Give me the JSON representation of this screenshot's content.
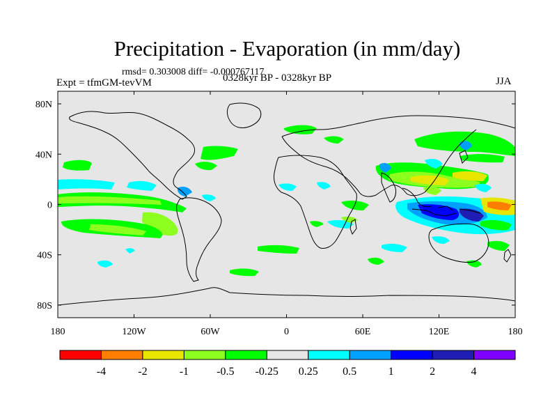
{
  "header": {
    "title": "Precipitation - Evaporation (in mm/day)",
    "stats": "rmsd= 0.303008 diff= -0.000767117",
    "experiment": "Expt = tfmGM-tevVM",
    "period": "0328kyr BP - 0328kyr BP",
    "season": "JJA"
  },
  "map": {
    "background_color": "#e6e6e6",
    "lat_ticks": [
      "80N",
      "40N",
      "0",
      "40S",
      "80S"
    ],
    "lon_ticks": [
      "180",
      "120W",
      "60W",
      "0",
      "60E",
      "120E",
      "180"
    ]
  },
  "colorbar": {
    "colors": [
      "#ff0000",
      "#ff8000",
      "#e6e600",
      "#8cff1e",
      "#00ff00",
      "#e6e6e6",
      "#00ffff",
      "#00a0ff",
      "#0000ff",
      "#1e1eb4",
      "#8000ff"
    ],
    "labels": [
      "-4",
      "-2",
      "-1",
      "-0.5",
      "-0.25",
      "0.25",
      "0.5",
      "1",
      "2",
      "4"
    ]
  }
}
